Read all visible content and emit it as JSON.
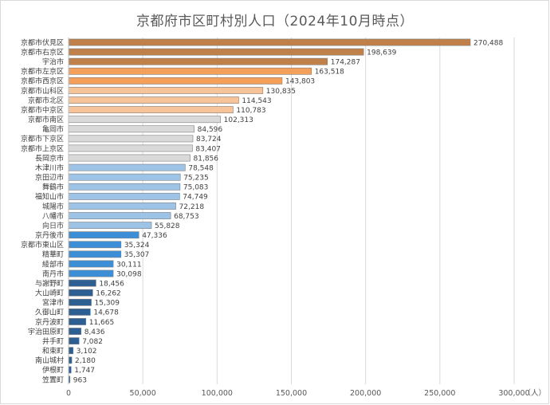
{
  "chart_data": {
    "type": "bar",
    "orientation": "horizontal",
    "title": "京都府市区町村別人口（2024年10月時点）",
    "xlabel": "",
    "ylabel": "",
    "unit_label": "（人）",
    "xlim": [
      0,
      300000
    ],
    "x_ticks": [
      0,
      50000,
      100000,
      150000,
      200000,
      250000,
      300000
    ],
    "x_tick_labels": [
      "0",
      "50,000",
      "100,000",
      "150,000",
      "200,000",
      "250,000",
      "300,000"
    ],
    "grid": true,
    "categories": [
      "京都市伏見区",
      "京都市右京区",
      "宇治市",
      "京都市左京区",
      "京都市西京区",
      "京都市山科区",
      "京都市北区",
      "京都市中京区",
      "京都市南区",
      "亀岡市",
      "京都市下京区",
      "京都市上京区",
      "長岡京市",
      "木津川市",
      "京田辺市",
      "舞鶴市",
      "福知山市",
      "城陽市",
      "八幡市",
      "向日市",
      "京丹後市",
      "京都市東山区",
      "精華町",
      "綾部市",
      "南丹市",
      "与謝野町",
      "大山崎町",
      "宮津市",
      "久御山町",
      "京丹波町",
      "宇治田原町",
      "井手町",
      "和束町",
      "南山城村",
      "伊根町",
      "笠置町"
    ],
    "values": [
      270488,
      198639,
      174287,
      163518,
      143803,
      130835,
      114543,
      110783,
      102313,
      84596,
      83724,
      83407,
      81856,
      78548,
      75235,
      75083,
      74749,
      72218,
      68753,
      55828,
      47336,
      35324,
      35307,
      30111,
      30098,
      18456,
      16262,
      15309,
      14678,
      11665,
      8436,
      7082,
      3102,
      2180,
      1747,
      963
    ],
    "value_labels": [
      "270,488",
      "198,639",
      "174,287",
      "163,518",
      "143,803",
      "130,835",
      "114,543",
      "110,783",
      "102,313",
      "84,596",
      "83,724",
      "83,407",
      "81,856",
      "78,548",
      "75,235",
      "75,083",
      "74,749",
      "72,218",
      "68,753",
      "55,828",
      "47,336",
      "35,324",
      "35,307",
      "30,111",
      "30,098",
      "18,456",
      "16,262",
      "15,309",
      "14,678",
      "11,665",
      "8,436",
      "7,082",
      "3,102",
      "2,180",
      "1,747",
      "963"
    ],
    "colors": [
      "#c0804a",
      "#c0804a",
      "#c0804a",
      "#f5a05a",
      "#f5a05a",
      "#f7c49a",
      "#f7c49a",
      "#f7c49a",
      "#d9d9d9",
      "#d9d9d9",
      "#d9d9d9",
      "#d9d9d9",
      "#d9d9d9",
      "#9dc3e6",
      "#9dc3e6",
      "#9dc3e6",
      "#9dc3e6",
      "#9dc3e6",
      "#9dc3e6",
      "#9dc3e6",
      "#3c8fd6",
      "#3c8fd6",
      "#3c8fd6",
      "#3c8fd6",
      "#3c8fd6",
      "#2e5f93",
      "#2e5f93",
      "#2e5f93",
      "#2e5f93",
      "#2e5f93",
      "#2e5f93",
      "#2e5f93",
      "#2e5f93",
      "#2e5f93",
      "#2e5f93",
      "#2e5f93"
    ]
  }
}
